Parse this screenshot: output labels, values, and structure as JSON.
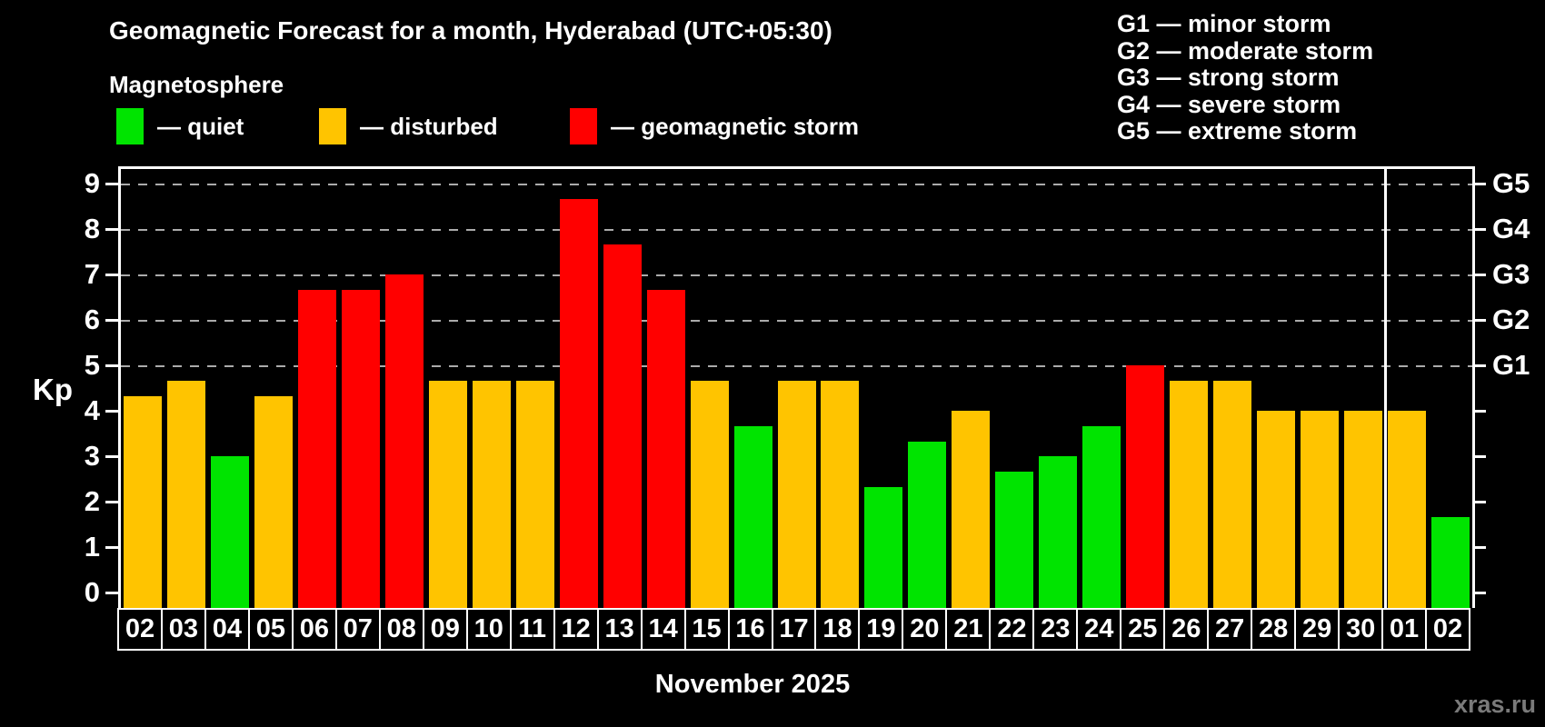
{
  "header": {
    "title": "Geomagnetic Forecast for a month, Hyderabad (UTC+05:30)",
    "subtitle": "Magnetosphere"
  },
  "legend": {
    "quiet": "— quiet",
    "disturbed": "— disturbed",
    "storm": "— geomagnetic storm"
  },
  "g_legend": [
    "G1 — minor storm",
    "G2 — moderate storm",
    "G3 — strong storm",
    "G4 — severe storm",
    "G5 — extreme storm"
  ],
  "axis": {
    "kp_label": "Kp",
    "tick_values": [
      0,
      1,
      2,
      3,
      4,
      5,
      6,
      7,
      8,
      9
    ],
    "right_labels": [
      {
        "kp": 5,
        "label": "G1"
      },
      {
        "kp": 6,
        "label": "G2"
      },
      {
        "kp": 7,
        "label": "G3"
      },
      {
        "kp": 8,
        "label": "G4"
      },
      {
        "kp": 9,
        "label": "G5"
      }
    ]
  },
  "footer": {
    "month_label": "November 2025",
    "watermark": "xras.ru"
  },
  "colors": {
    "quiet": "#00e400",
    "disturbed": "#ffc400",
    "storm": "#ff0000",
    "grid": "#ababab",
    "axis": "#ffffff",
    "background": "#000000",
    "watermark": "#7a7a7a"
  },
  "chart_data": {
    "type": "bar",
    "title": "Geomagnetic Forecast for a month, Hyderabad (UTC+05:30)",
    "xlabel": "November 2025",
    "ylabel": "Kp",
    "ylim": [
      0,
      9
    ],
    "grid": "dashed horizontal at Kp 5-9",
    "legend_position": "top",
    "gridlines_kp": [
      5,
      6,
      7,
      8,
      9
    ],
    "month_separator_after_index": 28,
    "categories": [
      "02",
      "03",
      "04",
      "05",
      "06",
      "07",
      "08",
      "09",
      "10",
      "11",
      "12",
      "13",
      "14",
      "15",
      "16",
      "17",
      "18",
      "19",
      "20",
      "21",
      "22",
      "23",
      "24",
      "25",
      "26",
      "27",
      "28",
      "29",
      "30",
      "01",
      "02"
    ],
    "values": [
      4.33,
      4.67,
      3,
      4.33,
      6.67,
      6.67,
      7,
      4.67,
      4.67,
      4.67,
      8.67,
      7.67,
      6.67,
      4.67,
      3.67,
      4.67,
      4.67,
      2.33,
      3.33,
      4,
      2.67,
      3,
      3.67,
      5,
      4.67,
      4.67,
      4,
      4,
      4,
      4,
      1.67
    ],
    "status": [
      "disturbed",
      "disturbed",
      "quiet",
      "disturbed",
      "storm",
      "storm",
      "storm",
      "disturbed",
      "disturbed",
      "disturbed",
      "storm",
      "storm",
      "storm",
      "disturbed",
      "quiet",
      "disturbed",
      "disturbed",
      "quiet",
      "quiet",
      "disturbed",
      "quiet",
      "quiet",
      "quiet",
      "storm",
      "disturbed",
      "disturbed",
      "disturbed",
      "disturbed",
      "disturbed",
      "disturbed",
      "quiet"
    ]
  }
}
